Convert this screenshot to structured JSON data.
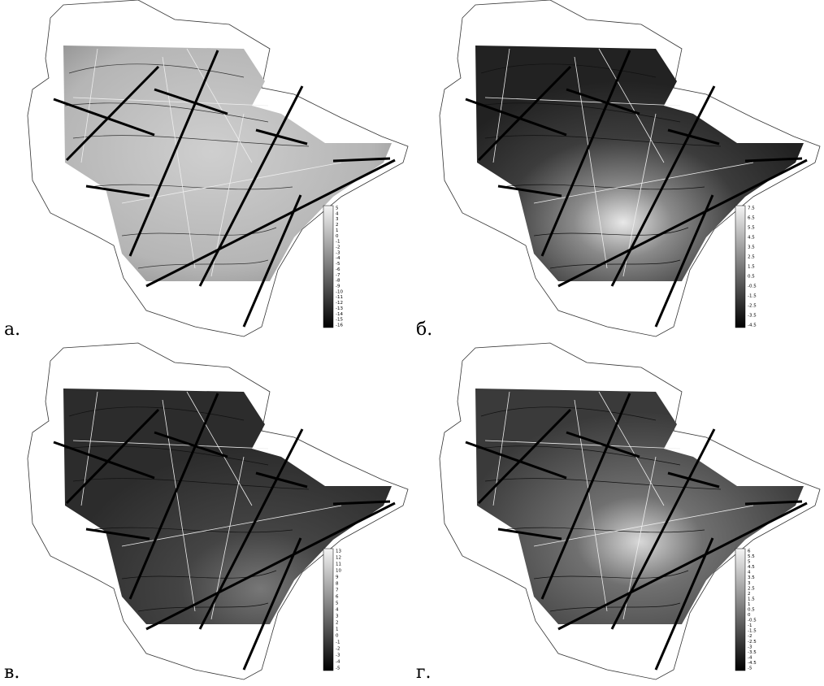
{
  "panels": [
    {
      "label": "а.",
      "legend_labels": [
        "5",
        "4",
        "3",
        "2",
        "1",
        "0",
        "-1",
        "-2",
        "-3",
        "-4",
        "-5",
        "-6",
        "-7",
        "-8",
        "-9",
        "-10",
        "-11",
        "-12",
        "-13",
        "-14",
        "-15",
        "-16"
      ]
    },
    {
      "label": "б.",
      "legend_labels": [
        "7.5",
        "6.5",
        "5.5",
        "4.5",
        "3.5",
        "2.5",
        "1.5",
        "0.5",
        "-0.5",
        "-1.5",
        "-2.5",
        "-3.5",
        "-4.5"
      ]
    },
    {
      "label": "в.",
      "legend_labels": [
        "13",
        "12",
        "11",
        "10",
        "9",
        "8",
        "7",
        "6",
        "5",
        "4",
        "3",
        "2",
        "1",
        "0",
        "-1",
        "-2",
        "-3",
        "-4",
        "-5"
      ]
    },
    {
      "label": "г.",
      "legend_labels": [
        "6",
        "5.5",
        "5",
        "4.5",
        "4",
        "3.5",
        "3",
        "2.5",
        "2",
        "1.5",
        "1",
        "0.5",
        "0",
        "-0.5",
        "-1",
        "-1.5",
        "-2",
        "-2.5",
        "-3",
        "-3.5",
        "-4",
        "-4.5",
        "-5"
      ]
    }
  ]
}
